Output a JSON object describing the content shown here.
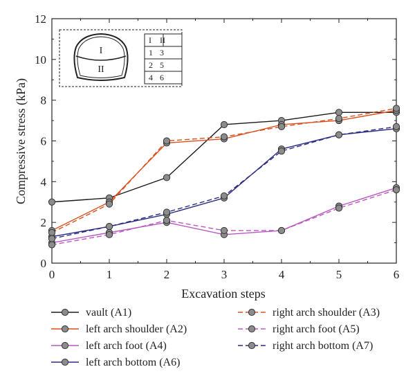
{
  "chart_data": {
    "type": "line",
    "xlabel": "Excavation steps",
    "ylabel": "Compressive stress (kPa)",
    "xlim": [
      0,
      6
    ],
    "ylim": [
      0,
      12
    ],
    "xticks": [
      "0",
      "1",
      "2",
      "3",
      "4",
      "5",
      "6"
    ],
    "yticks": [
      "0",
      "2",
      "4",
      "6",
      "8",
      "10",
      "12"
    ],
    "grid": false,
    "x": [
      0,
      1,
      2,
      3,
      4,
      5,
      6
    ],
    "series": [
      {
        "name": "vault (A1)",
        "color": "#1a1a1a",
        "dash": false,
        "values": [
          3.0,
          3.2,
          4.2,
          6.8,
          7.0,
          7.4,
          7.4
        ]
      },
      {
        "name": "left arch shoulder (A2)",
        "color": "#d9501e",
        "dash": false,
        "values": [
          1.6,
          3.0,
          5.9,
          6.1,
          6.8,
          7.0,
          7.5
        ]
      },
      {
        "name": "left arch foot (A4)",
        "color": "#b858c0",
        "dash": false,
        "values": [
          1.0,
          1.5,
          2.0,
          1.4,
          1.6,
          2.8,
          3.7
        ]
      },
      {
        "name": "left arch bottom (A6)",
        "color": "#2a2a80",
        "dash": false,
        "values": [
          1.3,
          1.8,
          2.4,
          3.2,
          5.6,
          6.3,
          6.6
        ]
      },
      {
        "name": "right arch shoulder (A3)",
        "color": "#d9501e",
        "dash": true,
        "values": [
          1.5,
          2.9,
          6.0,
          6.2,
          6.7,
          7.1,
          7.6
        ]
      },
      {
        "name": "right arch foot (A5)",
        "color": "#b858c0",
        "dash": true,
        "values": [
          0.9,
          1.4,
          2.1,
          1.6,
          1.6,
          2.7,
          3.6
        ]
      },
      {
        "name": "right arch bottom (A7)",
        "color": "#2a2a80",
        "dash": true,
        "values": [
          1.2,
          1.8,
          2.5,
          3.3,
          5.5,
          6.3,
          6.7
        ]
      }
    ],
    "legend_position": "bottom"
  },
  "inset": {
    "section_upper": "I",
    "section_lower": "II",
    "table": [
      [
        "I",
        "II"
      ],
      [
        "1",
        "3"
      ],
      [
        "2",
        "5"
      ],
      [
        "4",
        "6"
      ]
    ]
  }
}
